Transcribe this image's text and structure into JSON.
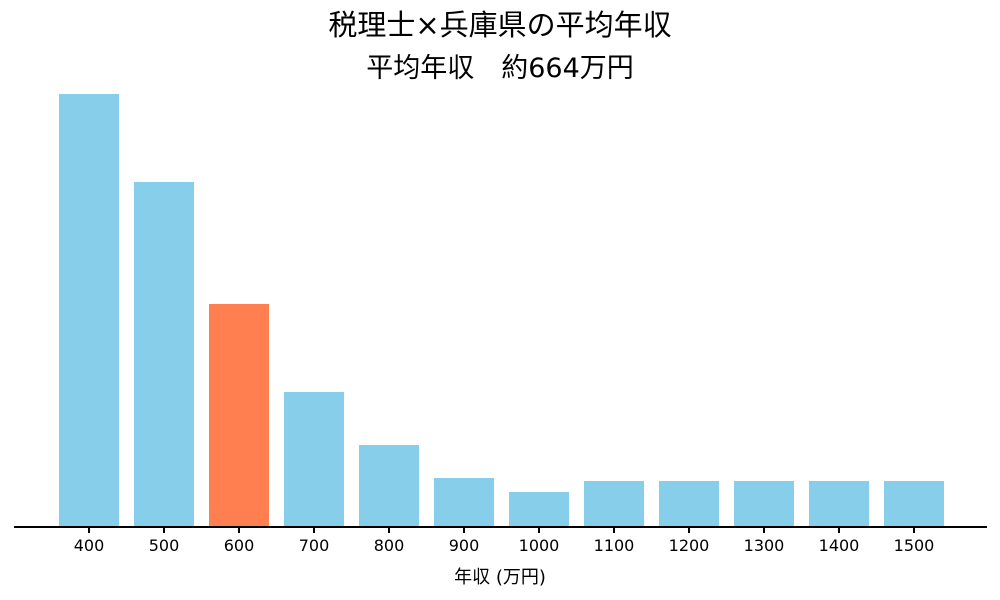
{
  "chart_data": {
    "type": "bar",
    "title": "税理士×兵庫県の平均年収",
    "subtitle": "平均年収　約664万円",
    "xlabel": "年収 (万円)",
    "ylabel": "",
    "categories": [
      "400",
      "500",
      "600",
      "700",
      "800",
      "900",
      "1000",
      "1100",
      "1200",
      "1300",
      "1400",
      "1500"
    ],
    "values": [
      100,
      79.7,
      51.5,
      31.2,
      18.9,
      11.3,
      8.1,
      10.6,
      10.6,
      10.6,
      10.6,
      10.6
    ],
    "values_unit": "relative height, percent of tallest bar (no y-axis shown)",
    "ylim": [
      0,
      100
    ],
    "highlighted_category": "600",
    "bar_color": "#87CEEB",
    "highlight_color": "#FF7F50",
    "axis_color": "#000000",
    "text_color": "#000000",
    "background_color": "#ffffff",
    "grid": false,
    "legend": false
  }
}
